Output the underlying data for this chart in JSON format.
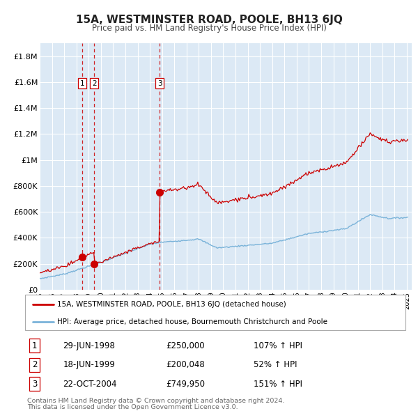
{
  "title": "15A, WESTMINSTER ROAD, POOLE, BH13 6JQ",
  "subtitle": "Price paid vs. HM Land Registry's House Price Index (HPI)",
  "legend_line1": "15A, WESTMINSTER ROAD, POOLE, BH13 6JQ (detached house)",
  "legend_line2": "HPI: Average price, detached house, Bournemouth Christchurch and Poole",
  "footer1": "Contains HM Land Registry data © Crown copyright and database right 2024.",
  "footer2": "This data is licensed under the Open Government Licence v3.0.",
  "sales": [
    {
      "num": 1,
      "date": "29-JUN-1998",
      "price": 250000,
      "price_str": "£250,000",
      "pct": "107%",
      "year": 1998.49
    },
    {
      "num": 2,
      "date": "18-JUN-1999",
      "price": 200048,
      "price_str": "£200,048",
      "pct": "52%",
      "year": 1999.46
    },
    {
      "num": 3,
      "date": "22-OCT-2004",
      "price": 749950,
      "price_str": "£749,950",
      "pct": "151%",
      "year": 2004.81
    }
  ],
  "hpi_color": "#7ab3d9",
  "price_color": "#cc0000",
  "bg_color": "#dce9f5",
  "grid_color": "#ffffff",
  "ylim": [
    0,
    1900000
  ],
  "yticks": [
    0,
    200000,
    400000,
    600000,
    800000,
    1000000,
    1200000,
    1400000,
    1600000,
    1800000
  ],
  "ytick_labels": [
    "£0",
    "£200K",
    "£400K",
    "£600K",
    "£800K",
    "£1M",
    "£1.2M",
    "£1.4M",
    "£1.6M",
    "£1.8M"
  ],
  "xlim_start": 1995,
  "xlim_end": 2025.4
}
